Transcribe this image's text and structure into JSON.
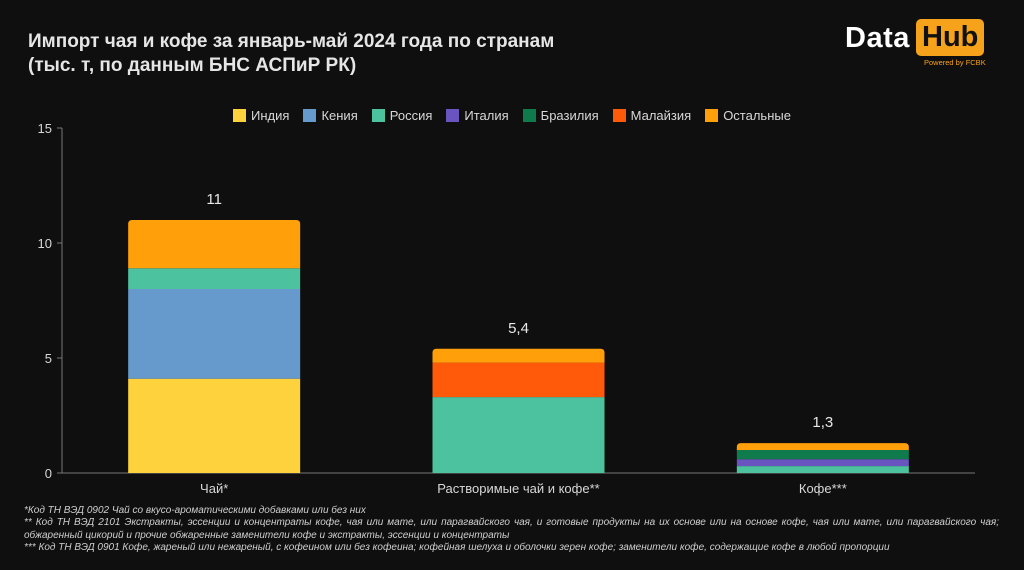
{
  "title_line1": "Импорт чая и кофе за январь-май 2024 года по странам",
  "title_line2": "(тыс. т, по данным БНС АСПиР РК)",
  "logo": {
    "data": "Data",
    "hub": "Hub",
    "powered": "Powered by FCBK",
    "accent_color": "#f7a21b"
  },
  "chart_data": {
    "type": "bar",
    "stacked": true,
    "categories": [
      "Чай*",
      "Растворимые чай и кофе**",
      "Кофе***"
    ],
    "totals_labels": [
      "11",
      "5,4",
      "1,3"
    ],
    "ylim": [
      0,
      15
    ],
    "yticks": [
      0,
      5,
      10,
      15
    ],
    "legend_position": "top-center",
    "grid": false,
    "series": [
      {
        "name": "Индия",
        "color": "#fdd23c",
        "values": [
          4.1,
          0,
          0
        ]
      },
      {
        "name": "Кения",
        "color": "#6699cc",
        "values": [
          3.9,
          0,
          0
        ]
      },
      {
        "name": "Россия",
        "color": "#4cc39e",
        "values": [
          0.9,
          3.3,
          0.3
        ]
      },
      {
        "name": "Италия",
        "color": "#6a54c0",
        "values": [
          0,
          0,
          0.3
        ]
      },
      {
        "name": "Бразилия",
        "color": "#0f7a4c",
        "values": [
          0,
          0,
          0.4
        ]
      },
      {
        "name": "Малайзия",
        "color": "#ff5a0a",
        "values": [
          0,
          1.5,
          0
        ]
      },
      {
        "name": "Остальные",
        "color": "#ff9f0a",
        "values": [
          2.1,
          0.6,
          0.3
        ]
      }
    ]
  },
  "footnotes": [
    "*Код ТН ВЭД 0902 Чай со вкусо-ароматическими добавками или без них",
    "** Код ТН ВЭД 2101 Экстракты, эссенции и концентраты кофе, чая или мате, или парагвайского чая, и готовые продукты на их основе или на основе кофе, чая или мате, или парагвайского чая; обжаренный цикорий и прочие обжаренные заменители кофе и экстракты, эссенции и концентраты",
    "*** Код ТН ВЭД 0901 Кофе, жареный или нежареный, с кофеином или без кофеина; кофейная шелуха и оболочки зерен кофе; заменители кофе, содержащие кофе в любой пропорции"
  ]
}
